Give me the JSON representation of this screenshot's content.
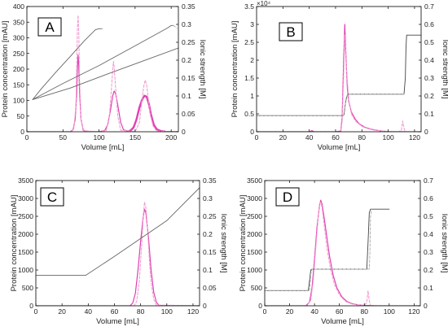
{
  "chart_data": [
    {
      "panel": "A",
      "type": "line",
      "xlabel": "Volume [mL]",
      "ylabel": "Protein concentration [mAU]",
      "ylabel_right": "Ionic strength [M]",
      "xlim": [
        0,
        210
      ],
      "ylim": [
        0,
        400
      ],
      "ylim_right": [
        0,
        0.35
      ],
      "xticks": [
        0,
        50,
        100,
        150,
        200
      ],
      "yticks": [
        0,
        50,
        100,
        150,
        200,
        250,
        300,
        350,
        400
      ],
      "yticks_right": [
        0,
        0.05,
        0.1,
        0.15,
        0.2,
        0.25,
        0.3,
        0.35
      ],
      "series": [
        {
          "style": "protein-solid",
          "color": "#e040b0",
          "x": [
            0,
            60,
            64,
            67,
            69,
            70,
            71,
            72,
            73,
            75,
            78,
            82,
            100,
            108,
            112,
            116,
            119,
            121,
            123,
            126,
            130,
            134,
            140,
            146,
            152,
            157,
            160,
            163,
            166,
            169,
            172,
            176,
            180,
            186,
            210
          ],
          "y": [
            0,
            0,
            6,
            40,
            120,
            200,
            245,
            210,
            130,
            40,
            6,
            0,
            0,
            4,
            22,
            70,
            115,
            130,
            122,
            85,
            30,
            6,
            2,
            8,
            38,
            80,
            103,
            115,
            110,
            85,
            50,
            22,
            8,
            1,
            0
          ]
        },
        {
          "style": "protein-solid-bold",
          "color": "#e040b0",
          "x": [
            142,
            148,
            152,
            156,
            160,
            163,
            166,
            169,
            172,
            176,
            180,
            186,
            192
          ],
          "y": [
            0,
            14,
            40,
            78,
            104,
            115,
            112,
            90,
            55,
            22,
            8,
            2,
            0
          ]
        },
        {
          "style": "protein-dashed",
          "color": "#f0a0d0",
          "x": [
            0,
            62,
            65,
            68,
            69,
            70,
            71,
            72,
            73,
            75,
            78,
            100,
            110,
            114,
            117,
            119,
            120,
            121,
            123,
            126,
            130,
            150,
            156,
            159,
            162,
            164,
            166,
            168,
            171,
            175,
            180,
            210
          ],
          "y": [
            0,
            0,
            10,
            80,
            200,
            330,
            372,
            310,
            170,
            40,
            3,
            0,
            4,
            40,
            130,
            200,
            225,
            205,
            140,
            50,
            5,
            0,
            30,
            90,
            145,
            165,
            150,
            110,
            55,
            18,
            2,
            0
          ]
        },
        {
          "style": "ionic-line",
          "axis": "right",
          "color": "#666666",
          "x": [
            8,
            20,
            40,
            60,
            80,
            95,
            100,
            104
          ],
          "y": [
            0.09,
            0.12,
            0.166,
            0.21,
            0.255,
            0.285,
            0.288,
            0.288
          ]
        },
        {
          "style": "ionic-line",
          "axis": "right",
          "color": "#666666",
          "x": [
            8,
            50,
            100,
            150,
            195,
            200,
            203
          ],
          "y": [
            0.09,
            0.135,
            0.185,
            0.24,
            0.29,
            0.297,
            0.297
          ]
        },
        {
          "style": "ionic-line",
          "axis": "right",
          "color": "#666666",
          "x": [
            8,
            60,
            110,
            160,
            210
          ],
          "y": [
            0.09,
            0.122,
            0.16,
            0.197,
            0.234
          ]
        },
        {
          "style": "ionic-dashed",
          "axis": "right",
          "color": "#aaaaaa",
          "x": [
            104,
            105
          ],
          "y": [
            0.288,
            0.288
          ]
        },
        {
          "style": "ionic-dashed",
          "axis": "right",
          "color": "#aaaaaa",
          "x": [
            203,
            208
          ],
          "y": [
            0.297,
            0.29
          ]
        }
      ]
    },
    {
      "panel": "B",
      "type": "line",
      "xlabel": "Volume [mL]",
      "ylabel": "Protein concentration [mAU]",
      "ylabel_right": "Ionic strength [M]",
      "exponent": "×10⁴",
      "xlim": [
        0,
        125
      ],
      "ylim": [
        0,
        3.5
      ],
      "ylim_right": [
        0,
        0.7
      ],
      "xticks": [
        0,
        20,
        40,
        60,
        80,
        100,
        120
      ],
      "yticks": [
        0,
        0.5,
        1,
        1.5,
        2,
        2.5,
        3,
        3.5
      ],
      "yticks_right": [
        0,
        0.1,
        0.2,
        0.3,
        0.4,
        0.5,
        0.6,
        0.7
      ],
      "series": [
        {
          "style": "protein-solid",
          "color": "#e040b0",
          "x": [
            0,
            40,
            42,
            44,
            60,
            64,
            65,
            66,
            67,
            68,
            69,
            70,
            72,
            75,
            78,
            82,
            86,
            90,
            95,
            100,
            125
          ],
          "y": [
            0,
            0,
            0.03,
            0,
            0,
            0.02,
            0.4,
            1.8,
            3.0,
            2.0,
            1.2,
            0.85,
            0.55,
            0.35,
            0.22,
            0.13,
            0.08,
            0.05,
            0.02,
            0,
            0
          ]
        },
        {
          "style": "protein-dashed",
          "color": "#f0a0d0",
          "x": [
            0,
            64,
            65,
            66,
            67,
            68,
            70,
            72,
            75,
            80,
            85,
            90,
            100,
            108,
            110,
            111,
            112,
            113,
            125
          ],
          "y": [
            0,
            0,
            0.3,
            1.4,
            2.7,
            1.9,
            0.9,
            0.5,
            0.3,
            0.15,
            0.08,
            0.04,
            0.01,
            0,
            0.05,
            0.3,
            0.1,
            0,
            0
          ]
        },
        {
          "style": "ionic-line",
          "axis": "right",
          "color": "#444444",
          "x": [
            0,
            66,
            66.5,
            67,
            67.5,
            68,
            68.5,
            69,
            69.5,
            70,
            112,
            113,
            113.5,
            114,
            125
          ],
          "y": [
            0.09,
            0.09,
            0.1,
            0.13,
            0.16,
            0.18,
            0.195,
            0.205,
            0.21,
            0.21,
            0.21,
            0.3,
            0.47,
            0.54,
            0.54
          ]
        },
        {
          "style": "ionic-dashed",
          "axis": "right",
          "color": "#aaaaaa",
          "x": [
            0,
            66,
            67,
            68,
            69,
            70,
            80,
            112
          ],
          "y": [
            0.09,
            0.09,
            0.13,
            0.19,
            0.206,
            0.21,
            0.21,
            0.21
          ]
        }
      ]
    },
    {
      "panel": "C",
      "type": "line",
      "xlabel": "Volume [mL]",
      "ylabel": "Protein concentration [mAU]",
      "ylabel_right": "Ionic strength [M]",
      "xlim": [
        0,
        125
      ],
      "ylim": [
        0,
        3500
      ],
      "ylim_right": [
        0,
        0.35
      ],
      "xticks": [
        0,
        20,
        40,
        60,
        80,
        100,
        120
      ],
      "yticks": [
        0,
        500,
        1000,
        1500,
        2000,
        2500,
        3000,
        3500
      ],
      "yticks_right": [
        0,
        0.05,
        0.1,
        0.15,
        0.2,
        0.25,
        0.3,
        0.35
      ],
      "series": [
        {
          "style": "protein-solid",
          "color": "#e040b0",
          "x": [
            0,
            72,
            74,
            76,
            78,
            80,
            82,
            83,
            84,
            86,
            88,
            90,
            92,
            94,
            125
          ],
          "y": [
            0,
            0,
            80,
            350,
            1000,
            1800,
            2500,
            2700,
            2600,
            1900,
            1000,
            380,
            100,
            10,
            0
          ]
        },
        {
          "style": "protein-dashed",
          "color": "#f0a0d0",
          "x": [
            0,
            75,
            77,
            79,
            81,
            82,
            83,
            84,
            85,
            86,
            87,
            88,
            90,
            92,
            125
          ],
          "y": [
            0,
            0,
            120,
            700,
            1800,
            2500,
            2900,
            2750,
            2300,
            1700,
            1100,
            650,
            180,
            20,
            0
          ]
        },
        {
          "style": "ionic-line",
          "axis": "right",
          "color": "#666666",
          "x": [
            0,
            38,
            60,
            80,
            100,
            125
          ],
          "y": [
            0.085,
            0.085,
            0.138,
            0.188,
            0.238,
            0.33
          ]
        }
      ]
    },
    {
      "panel": "D",
      "type": "line",
      "xlabel": "Volume [mL]",
      "ylabel": "Protein concentration [mAU]",
      "ylabel_right": "Ionic strength [M]",
      "xlim": [
        0,
        125
      ],
      "ylim": [
        0,
        3500
      ],
      "ylim_right": [
        0,
        0.7
      ],
      "xticks": [
        0,
        20,
        40,
        60,
        80,
        100,
        120
      ],
      "yticks": [
        0,
        500,
        1000,
        1500,
        2000,
        2500,
        3000,
        3500
      ],
      "yticks_right": [
        0,
        0.1,
        0.2,
        0.3,
        0.4,
        0.5,
        0.6,
        0.7
      ],
      "series": [
        {
          "style": "protein-solid",
          "color": "#e040b0",
          "x": [
            0,
            33,
            36,
            38,
            40,
            42,
            44,
            45,
            46,
            48,
            50,
            52,
            55,
            58,
            62,
            66,
            70,
            75,
            80,
            90,
            125
          ],
          "y": [
            0,
            0,
            100,
            500,
            1300,
            2200,
            2800,
            2950,
            2850,
            2400,
            1900,
            1400,
            850,
            500,
            250,
            120,
            60,
            25,
            10,
            0,
            0
          ]
        },
        {
          "style": "protein-dashed",
          "color": "#f0a0d0",
          "x": [
            0,
            34,
            37,
            39,
            41,
            43,
            44,
            45,
            46,
            48,
            50,
            53,
            56,
            60,
            65,
            70,
            80,
            82,
            83,
            84,
            85,
            125
          ],
          "y": [
            0,
            0,
            150,
            700,
            1600,
            2500,
            2850,
            2900,
            2750,
            2200,
            1600,
            1000,
            600,
            300,
            120,
            50,
            5,
            100,
            420,
            150,
            0,
            0
          ]
        },
        {
          "style": "ionic-line",
          "axis": "right",
          "color": "#444444",
          "x": [
            0,
            35,
            36,
            37,
            38,
            82,
            83,
            84,
            85,
            100
          ],
          "y": [
            0.085,
            0.085,
            0.14,
            0.2,
            0.205,
            0.205,
            0.35,
            0.52,
            0.54,
            0.54
          ]
        },
        {
          "style": "ionic-dashed",
          "axis": "right",
          "color": "#aaaaaa",
          "x": [
            0,
            36,
            37,
            38,
            84,
            84.5,
            85,
            86
          ],
          "y": [
            0.085,
            0.085,
            0.18,
            0.205,
            0.205,
            0.3,
            0.5,
            0.54
          ]
        }
      ]
    }
  ]
}
